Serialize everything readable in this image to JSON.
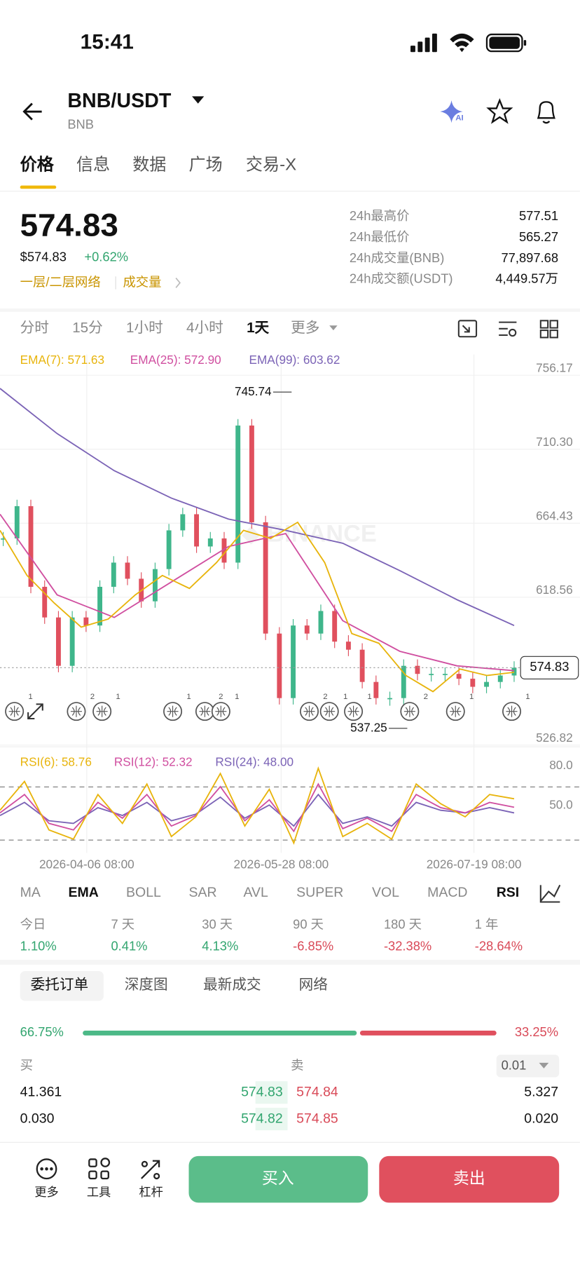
{
  "status": {
    "time": "15:41"
  },
  "header": {
    "pair": "BNB/USDT",
    "base": "BNB"
  },
  "tabs": [
    "价格",
    "信息",
    "数据",
    "广场",
    "交易-X"
  ],
  "price": {
    "last": "574.83",
    "usd": "$574.83",
    "change": "+0.62%",
    "tags": [
      "一层/二层网络",
      "成交量"
    ]
  },
  "stats": [
    [
      "24h最高价",
      "577.51"
    ],
    [
      "24h最低价",
      "565.27"
    ],
    [
      "24h成交量(BNB)",
      "77,897.68"
    ],
    [
      "24h成交额(USDT)",
      "4,449.57万"
    ]
  ],
  "intervals": [
    "分时",
    "15分",
    "1小时",
    "4小时",
    "1天",
    "更多"
  ],
  "chart": {
    "ema_labels": [
      "EMA(7): 571.63",
      "EMA(25): 572.90",
      "EMA(99): 603.62"
    ],
    "ylim": [
      525.8,
      769.1
    ],
    "yticks": [
      756.17,
      {
        "value": 710.3,
        "label": "710.30"
      },
      664.43,
      618.56,
      526.82
    ],
    "current": {
      "value": 574.83,
      "label": "574.83"
    },
    "high": {
      "value": 745.74,
      "label": "745.74"
    },
    "low": {
      "value": 537.25,
      "label": "537.25"
    },
    "closes": [
      655,
      675,
      625,
      606,
      576,
      606,
      601,
      625,
      640,
      630,
      616,
      636,
      660,
      670,
      650,
      655,
      640,
      725,
      665,
      596,
      556,
      601,
      596,
      610,
      591,
      586,
      566,
      556,
      556,
      576,
      571,
      571,
      571,
      568,
      563,
      566,
      570,
      574.83
    ],
    "ema7": [
      660,
      632,
      615,
      600,
      605,
      620,
      632,
      624,
      640,
      660,
      655,
      665,
      640,
      596,
      590,
      570,
      560,
      574,
      570,
      572
    ],
    "ema25": [
      670,
      620,
      606,
      628,
      650,
      658,
      604,
      585,
      576,
      573
    ],
    "ema99": [
      748,
      720,
      697,
      680,
      667,
      660,
      652,
      635,
      617,
      601
    ],
    "markers": [
      "1",
      "2",
      "1",
      "1",
      "2",
      "1",
      "2",
      "1",
      "1",
      "2",
      "1",
      "1"
    ],
    "dates": [
      "2026-04-06 08:00",
      "2026-05-28 08:00",
      "2026-07-19 08:00"
    ],
    "rsi_labels": [
      "RSI(6): 58.76",
      "RSI(12): 52.32",
      "RSI(24): 48.00"
    ],
    "rsi_ylim": [
      17.5,
      94.1
    ],
    "rsi_ticks": [
      {
        "value": 80,
        "label": "80.0"
      },
      {
        "value": 50,
        "label": "50.0"
      }
    ],
    "rsi6": [
      50,
      72,
      35,
      28,
      62,
      40,
      70,
      30,
      45,
      78,
      38,
      66,
      25,
      82,
      30,
      40,
      28,
      70,
      55,
      45,
      62,
      58.76
    ],
    "rsi12": [
      48,
      62,
      40,
      35,
      56,
      44,
      62,
      38,
      46,
      68,
      42,
      58,
      34,
      70,
      36,
      44,
      34,
      62,
      52,
      48,
      56,
      52.32
    ],
    "rsi24": [
      46,
      56,
      42,
      40,
      52,
      46,
      56,
      42,
      47,
      60,
      44,
      54,
      38,
      62,
      40,
      45,
      38,
      56,
      50,
      48,
      52,
      48
    ]
  },
  "indicators": [
    "MA",
    "EMA",
    "BOLL",
    "SAR",
    "AVL",
    "SUPER",
    "VOL",
    "MACD",
    "RSI"
  ],
  "performance": [
    [
      "今日",
      "1.10%"
    ],
    [
      "7 天",
      "0.41%"
    ],
    [
      "30 天",
      "4.13%"
    ],
    [
      "90 天",
      "-6.85%"
    ],
    [
      "180 天",
      "-32.38%"
    ],
    [
      "1 年",
      "-28.64%"
    ]
  ],
  "book_tabs": [
    "委托订单",
    "深度图",
    "最新成交",
    "网络"
  ],
  "ratio": {
    "values": [
      66.75,
      33.25
    ],
    "value_labels": [
      "66.75%",
      "33.25%"
    ]
  },
  "book": {
    "bid_label": "买",
    "ask_label": "卖",
    "step": "0.01",
    "rows": [
      [
        "41.361",
        "574.83",
        "574.84",
        "5.327"
      ],
      [
        "0.030",
        "574.82",
        "574.85",
        "0.020"
      ]
    ]
  },
  "bottom": {
    "more": "更多",
    "tools": "工具",
    "leverage": "杠杆",
    "buy": "买入",
    "sell": "卖出"
  }
}
